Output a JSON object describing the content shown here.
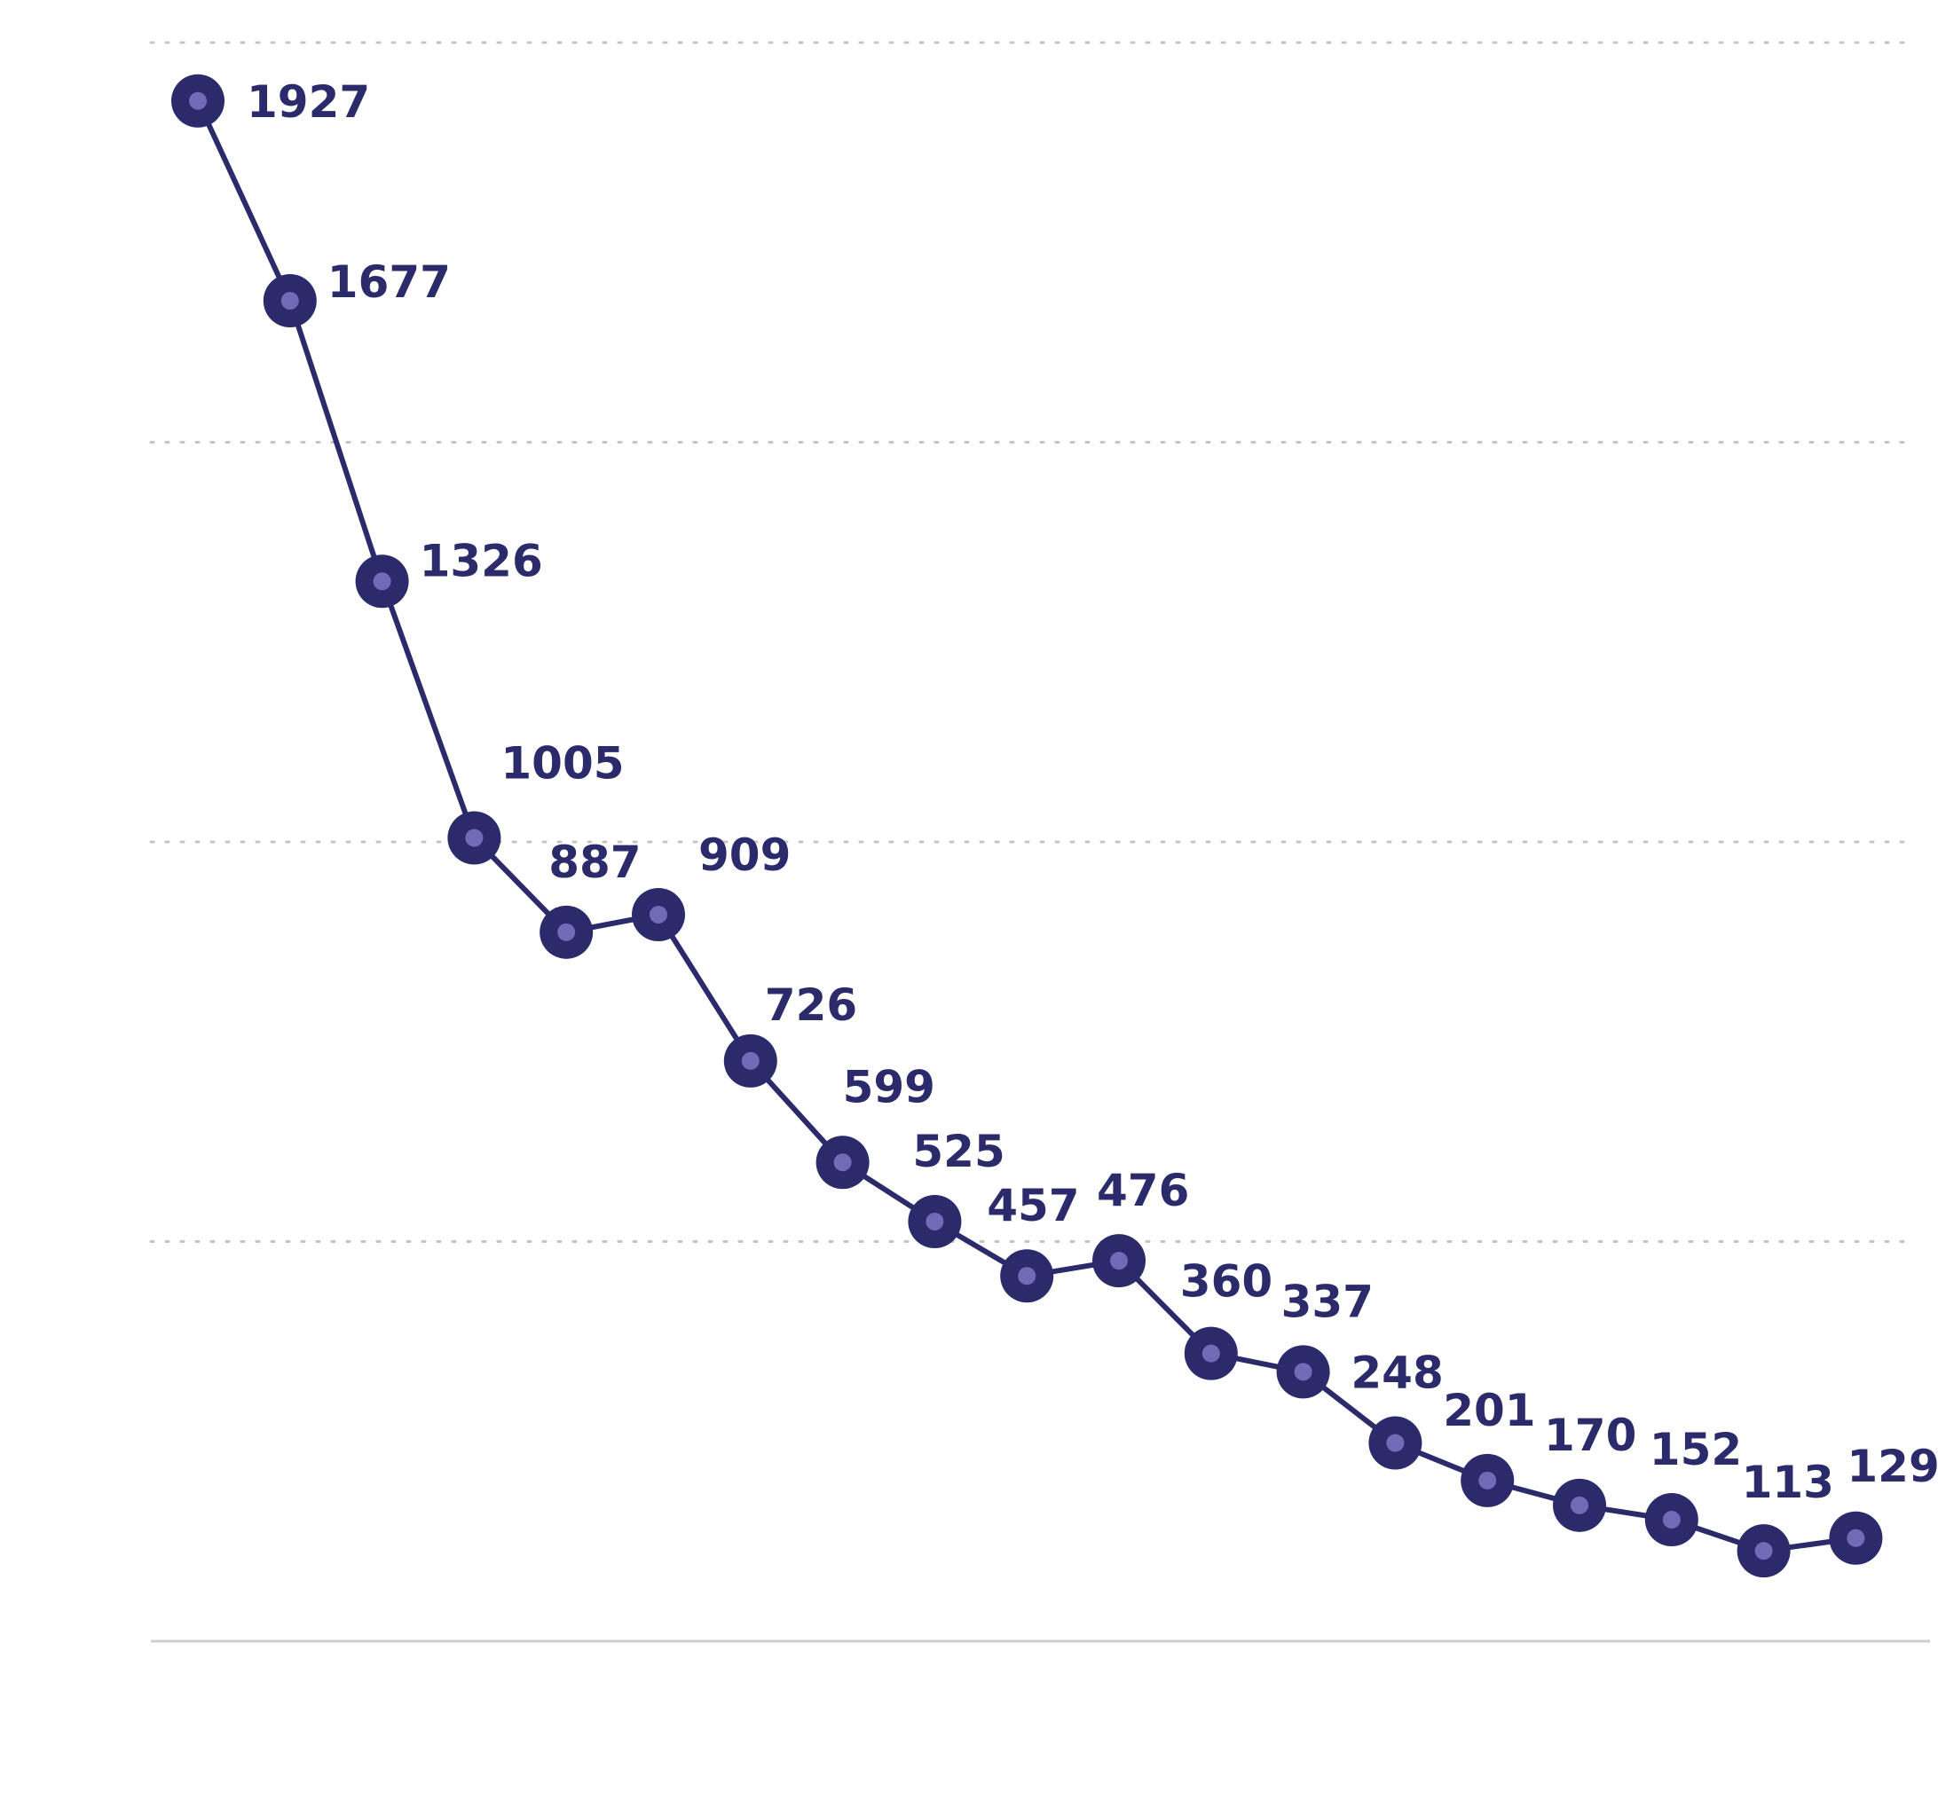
{
  "chart_data": {
    "type": "line",
    "title": "",
    "xlabel": "",
    "ylabel": "",
    "ylim": [
      0,
      2000
    ],
    "gridlines": [
      500,
      1000,
      1500,
      2000
    ],
    "grid": true,
    "values": [
      1927,
      1677,
      1326,
      1005,
      887,
      909,
      726,
      599,
      525,
      457,
      476,
      360,
      337,
      248,
      201,
      170,
      152,
      113,
      129
    ],
    "data_labels": [
      "1927",
      "1677",
      "1326",
      "1005",
      "887",
      "909",
      "726",
      "599",
      "525",
      "457",
      "476",
      "360",
      "337",
      "248",
      "201",
      "170",
      "152",
      "113",
      "129"
    ],
    "colors": {
      "line": "#2b2a6b",
      "marker_inner": "#6f6bb6",
      "label": "#2b2a6b"
    }
  }
}
